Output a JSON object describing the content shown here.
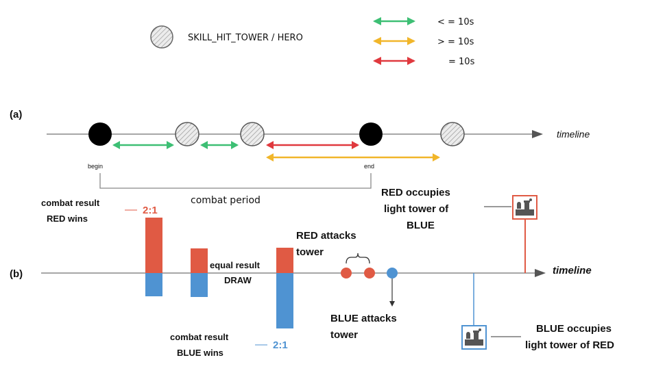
{
  "legend": {
    "circle_label": "SKILL_HIT_TOWER / HERO",
    "arrows": [
      {
        "label": "< = 10s",
        "color": "#3dbf74"
      },
      {
        "label": "> = 10s",
        "color": "#f1b62a"
      },
      {
        "label": "= 10s",
        "color": "#e0393e"
      }
    ]
  },
  "panel_a": {
    "label": "(a)",
    "timeline_label": "timeline",
    "begin_label": "begin",
    "end_label": "end",
    "period_label": "combat period"
  },
  "panel_b": {
    "label": "(b)",
    "timeline_label": "timeline",
    "red_result_line1": "combat result",
    "red_result_line2": "RED wins",
    "red_score": "2:1",
    "draw_line1": "equal result",
    "draw_line2": "DRAW",
    "blue_result_line1": "combat result",
    "blue_result_line2": "BLUE wins",
    "blue_score": "2:1",
    "red_attack_line1": "RED attacks",
    "red_attack_line2": "tower",
    "blue_attack_line1": "BLUE attacks",
    "blue_attack_line2": "tower",
    "red_occupy_line1": "RED occupies",
    "red_occupy_line2": "light tower of",
    "red_occupy_line3": "BLUE",
    "blue_occupy_line1": "BLUE occupies",
    "blue_occupy_line2": "light tower of RED"
  },
  "colors": {
    "red": "#e05a44",
    "blue": "#4f93d2",
    "green": "#3dbf74",
    "yellow": "#f1b62a",
    "crimson": "#e0393e"
  }
}
